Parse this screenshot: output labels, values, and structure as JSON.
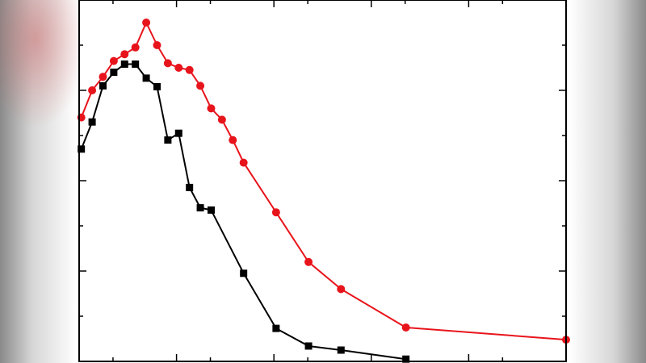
{
  "chart_data": {
    "type": "line",
    "title": "",
    "xlabel": "",
    "ylabel": "",
    "xlim": [
      0,
      45
    ],
    "ylim": [
      0,
      8
    ],
    "grid": false,
    "series": [
      {
        "color": "#e8141b",
        "marker": "circle",
        "x": [
          0.2,
          1.2,
          2.2,
          3.2,
          4.2,
          5.2,
          6.2,
          7.2,
          8.2,
          9.2,
          10.2,
          11.2,
          12.2,
          13.2,
          14.2,
          15.2,
          18.2,
          21.2,
          24.2,
          30.2,
          45.0
        ],
        "y": [
          5.4,
          6.0,
          6.3,
          6.65,
          6.8,
          6.95,
          7.5,
          7.0,
          6.6,
          6.5,
          6.45,
          6.1,
          5.6,
          5.35,
          4.9,
          4.4,
          3.3,
          2.2,
          1.6,
          0.75,
          0.48
        ]
      },
      {
        "color": "#000000",
        "marker": "square",
        "x": [
          0.2,
          1.2,
          2.2,
          3.2,
          4.2,
          5.2,
          6.2,
          7.2,
          8.2,
          9.2,
          10.2,
          11.2,
          12.2,
          15.2,
          18.2,
          21.2,
          24.2,
          30.2
        ],
        "y": [
          4.7,
          5.3,
          6.1,
          6.4,
          6.58,
          6.58,
          6.27,
          6.08,
          4.9,
          5.05,
          3.85,
          3.4,
          3.35,
          1.95,
          0.73,
          0.34,
          0.25,
          0.05
        ]
      }
    ]
  }
}
